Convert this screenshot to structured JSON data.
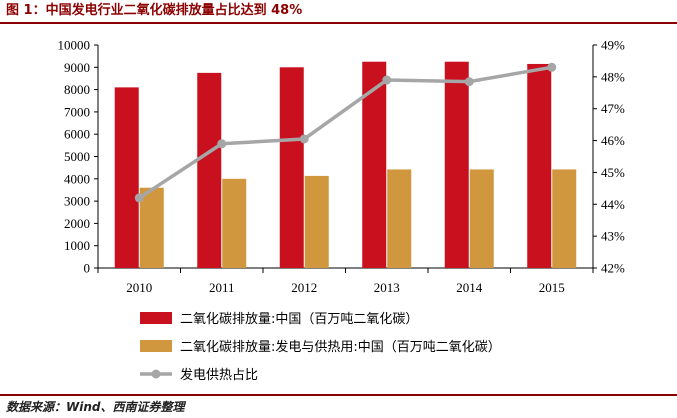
{
  "header": {
    "title": "图 1：中国发电行业二氧化碳排放量占比达到 48%"
  },
  "footer": {
    "source": "数据来源：Wind、西南证券整理"
  },
  "colors": {
    "red": "#c8101f",
    "gold": "#d0973f",
    "gray": "#a6a6a6",
    "frame": "#8b0000"
  },
  "chart_data": {
    "type": "bar",
    "categories": [
      "2010",
      "2011",
      "2012",
      "2013",
      "2014",
      "2015"
    ],
    "series": [
      {
        "name": "二氧化碳排放量:中国（百万吨二氧化碳）",
        "type": "bar",
        "axis": "left",
        "values": [
          8100,
          8750,
          9000,
          9250,
          9250,
          9150
        ]
      },
      {
        "name": "二氧化碳排放量:发电与供热用:中国（百万吨二氧化碳）",
        "type": "bar",
        "axis": "left",
        "values": [
          3600,
          4000,
          4130,
          4420,
          4420,
          4420
        ]
      },
      {
        "name": "发电供热占比",
        "type": "line",
        "axis": "right",
        "values": [
          44.2,
          45.9,
          46.05,
          47.9,
          47.85,
          48.3
        ]
      }
    ],
    "y_left": {
      "min": 0,
      "max": 10000,
      "ticks": [
        "0",
        "1000",
        "2000",
        "3000",
        "4000",
        "5000",
        "6000",
        "7000",
        "8000",
        "9000",
        "10000"
      ]
    },
    "y_right": {
      "min": 42,
      "max": 49,
      "ticks": [
        "42%",
        "43%",
        "44%",
        "45%",
        "46%",
        "47%",
        "48%",
        "49%"
      ]
    },
    "legend_position": "bottom"
  }
}
